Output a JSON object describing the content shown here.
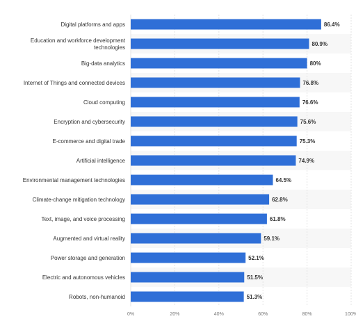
{
  "chart_data": {
    "type": "bar",
    "orientation": "horizontal",
    "title": "",
    "xlabel": "",
    "ylabel": "",
    "categories": [
      [
        "Digital platforms and apps"
      ],
      [
        "Education and workforce development",
        "technologies"
      ],
      [
        "Big-data analytics"
      ],
      [
        "Internet of Things and connected devices"
      ],
      [
        "Cloud computing"
      ],
      [
        "Encryption and cybersecurity"
      ],
      [
        "E-commerce and digital trade"
      ],
      [
        "Artificial intelligence"
      ],
      [
        "Environmental management technologies"
      ],
      [
        "Climate-change mitigation technology"
      ],
      [
        "Text, image, and voice processing"
      ],
      [
        "Augmented and virtual reality"
      ],
      [
        "Power storage and generation"
      ],
      [
        "Electric and autonomous vehicles"
      ],
      [
        "Robots, non-humanoid"
      ]
    ],
    "values": [
      86.4,
      80.9,
      80,
      76.8,
      76.6,
      75.6,
      75.3,
      74.9,
      64.5,
      62.8,
      61.8,
      59.1,
      52.1,
      51.5,
      51.3
    ],
    "value_labels": [
      "86.4%",
      "80.9%",
      "80%",
      "76.8%",
      "76.6%",
      "75.6%",
      "75.3%",
      "74.9%",
      "64.5%",
      "62.8%",
      "61.8%",
      "59.1%",
      "52.1%",
      "51.5%",
      "51.3%"
    ],
    "xlim": [
      0,
      100
    ],
    "x_ticks": [
      0,
      20,
      40,
      60,
      80,
      100
    ],
    "x_tick_labels": [
      "0%",
      "20%",
      "40%",
      "60%",
      "80%",
      "100%"
    ],
    "grid": true,
    "legend": "none",
    "colors": {
      "bar": "#2f6fd7",
      "band": "#f7f7f7",
      "grid": "#e3e3e3",
      "category_text": "#333333",
      "value_text": "#333333",
      "tick_text": "#777777"
    }
  }
}
